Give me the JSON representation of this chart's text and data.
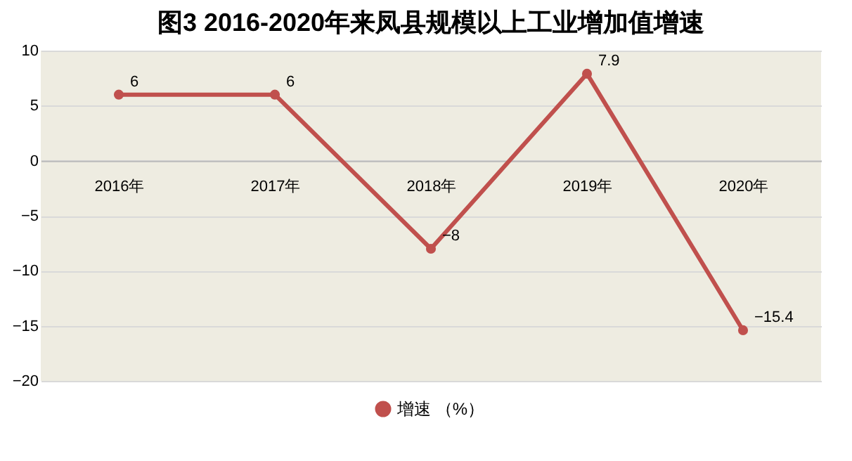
{
  "chart_data": {
    "type": "line",
    "title": "图3   2016-2020年来凤县规模以上工业增加值增速",
    "categories": [
      "2016年",
      "2017年",
      "2018年",
      "2019年",
      "2020年"
    ],
    "series": [
      {
        "name": "增速 （%）",
        "color": "#c0504d",
        "values": [
          6,
          6,
          -8,
          7.9,
          -15.4
        ]
      }
    ],
    "ylim": [
      -20,
      10
    ],
    "yticks": [
      -20,
      -15,
      -10,
      -5,
      0,
      5,
      10
    ],
    "grid": "y",
    "legend": "bottom",
    "marker": "circle",
    "line_style": "solid",
    "data_labels": true
  }
}
